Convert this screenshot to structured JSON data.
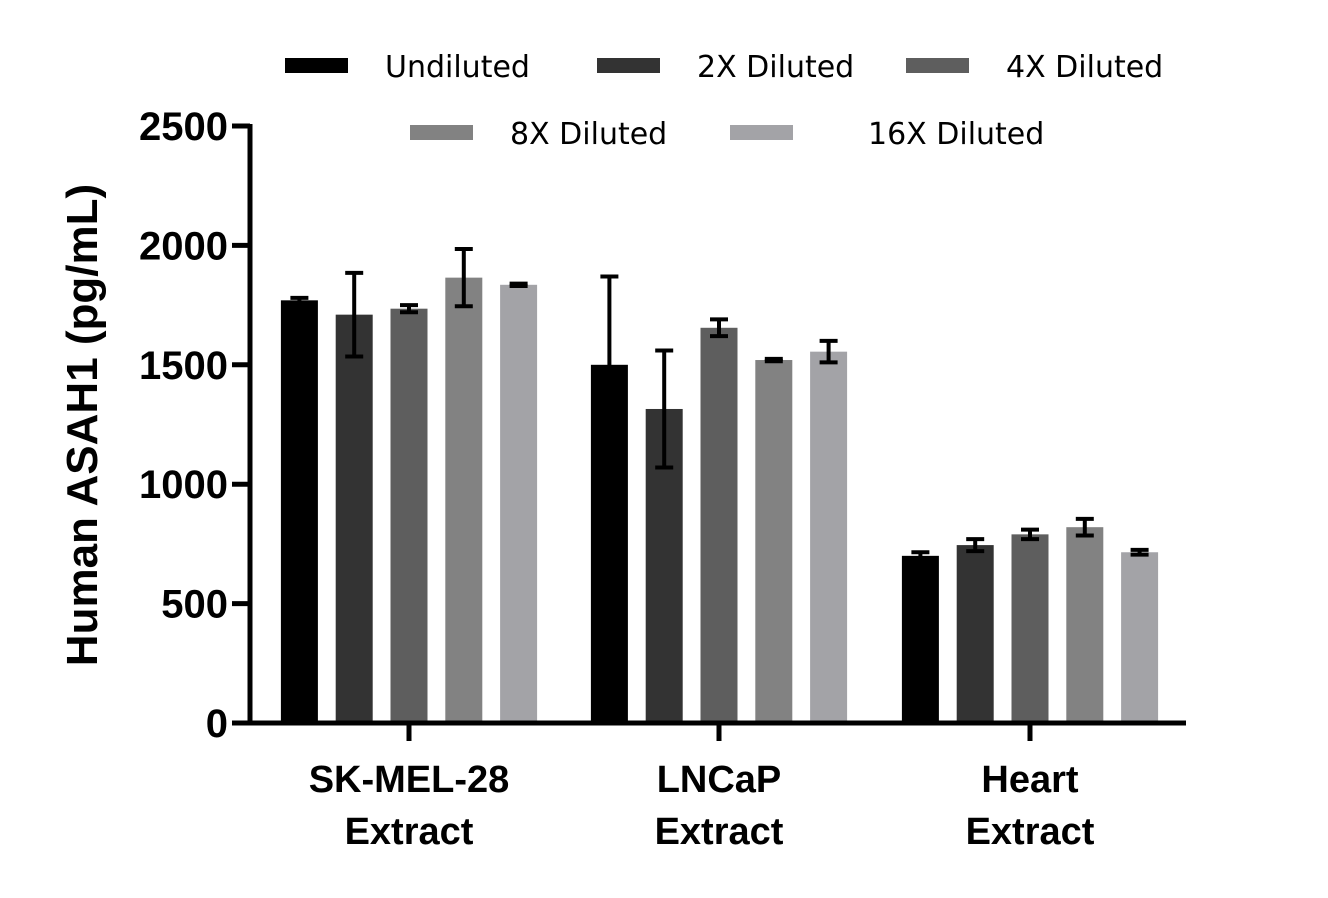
{
  "chart_data": {
    "type": "bar",
    "title": "",
    "xlabel": "",
    "ylabel": "Human ASAH1 (pg/mL)",
    "ylim": [
      0,
      2500
    ],
    "yticks": [
      "0",
      "500",
      "1000",
      "1500",
      "2000",
      "2500"
    ],
    "grid": false,
    "legend_position": "top",
    "categories": [
      {
        "line1": "SK-MEL-28",
        "line2": "Extract"
      },
      {
        "line1": "LNCaP",
        "line2": "Extract"
      },
      {
        "line1": "Heart",
        "line2": "Extract"
      }
    ],
    "series": [
      {
        "name": "Undiluted",
        "color": "#000000",
        "values": [
          1770,
          1500,
          700
        ],
        "errors": [
          10,
          370,
          15
        ]
      },
      {
        "name": "2X Diluted",
        "color": "#333333",
        "values": [
          1710,
          1315,
          745
        ],
        "errors": [
          175,
          245,
          25
        ]
      },
      {
        "name": "4X Diluted",
        "color": "#5e5e5e",
        "values": [
          1735,
          1655,
          790
        ],
        "errors": [
          15,
          35,
          20
        ]
      },
      {
        "name": "8X Diluted",
        "color": "#828282",
        "values": [
          1865,
          1520,
          820
        ],
        "errors": [
          120,
          5,
          35
        ]
      },
      {
        "name": "16X Diluted",
        "color": "#a3a3a7",
        "values": [
          1835,
          1555,
          715
        ],
        "errors": [
          5,
          45,
          10
        ]
      }
    ]
  }
}
